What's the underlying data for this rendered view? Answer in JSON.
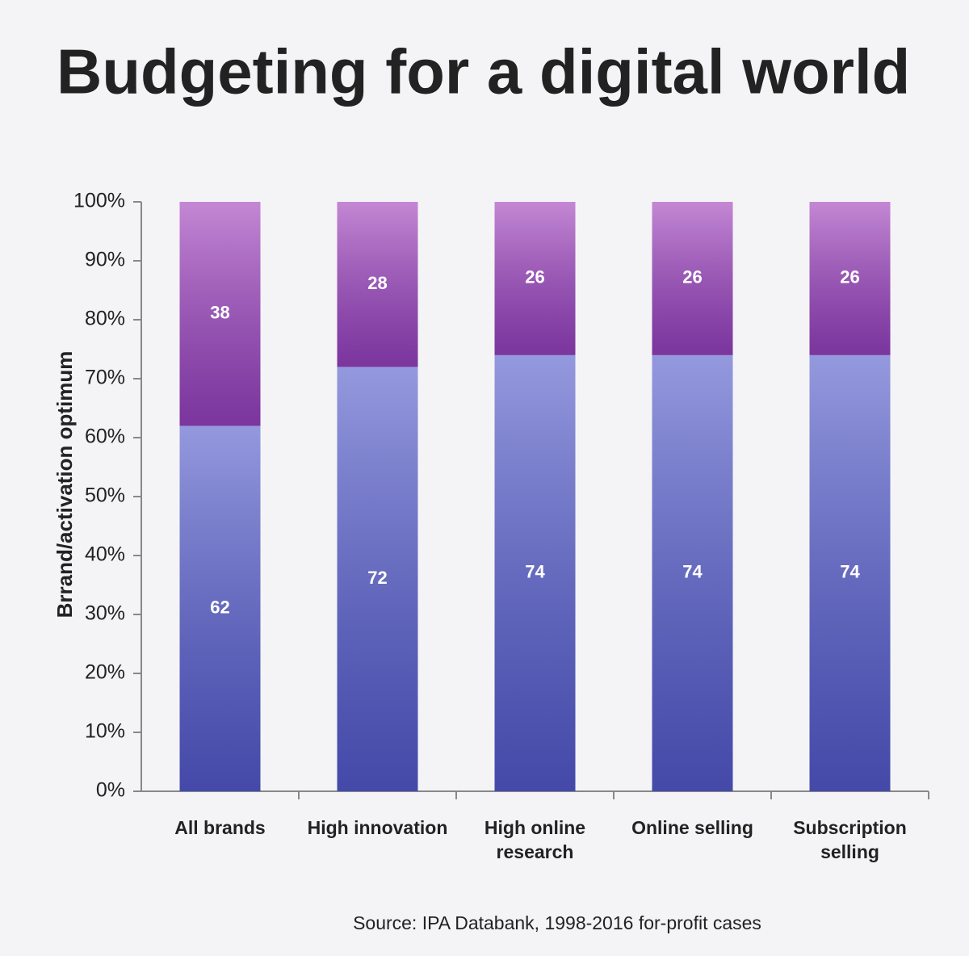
{
  "chart_data": {
    "type": "stacked_bar",
    "title": "Budgeting for a digital world",
    "y_label": "Brrand/activation optimum",
    "source": "Source: IPA Databank, 1998-2016 for-profit cases",
    "categories": [
      "All brands",
      "High innovation",
      "High online research",
      "Online selling",
      "Subscription selling"
    ],
    "series": [
      {
        "color": "#5b62cc",
        "values": [
          62,
          72,
          74,
          74,
          74
        ]
      },
      {
        "color": "#a447bd",
        "values": [
          38,
          28,
          26,
          26,
          26
        ]
      }
    ],
    "ylim": [
      0,
      100
    ],
    "yticks": [
      {
        "value": 0,
        "label": "0%"
      },
      {
        "value": 10,
        "label": "10%"
      },
      {
        "value": 20,
        "label": "20%"
      },
      {
        "value": 30,
        "label": "30%"
      },
      {
        "value": 40,
        "label": "40%"
      },
      {
        "value": 50,
        "label": "50%"
      },
      {
        "value": 60,
        "label": "60%"
      },
      {
        "value": 70,
        "label": "70%"
      },
      {
        "value": 80,
        "label": "80%"
      },
      {
        "value": 90,
        "label": "90%"
      },
      {
        "value": 100,
        "label": "100%"
      }
    ],
    "grid": false
  }
}
